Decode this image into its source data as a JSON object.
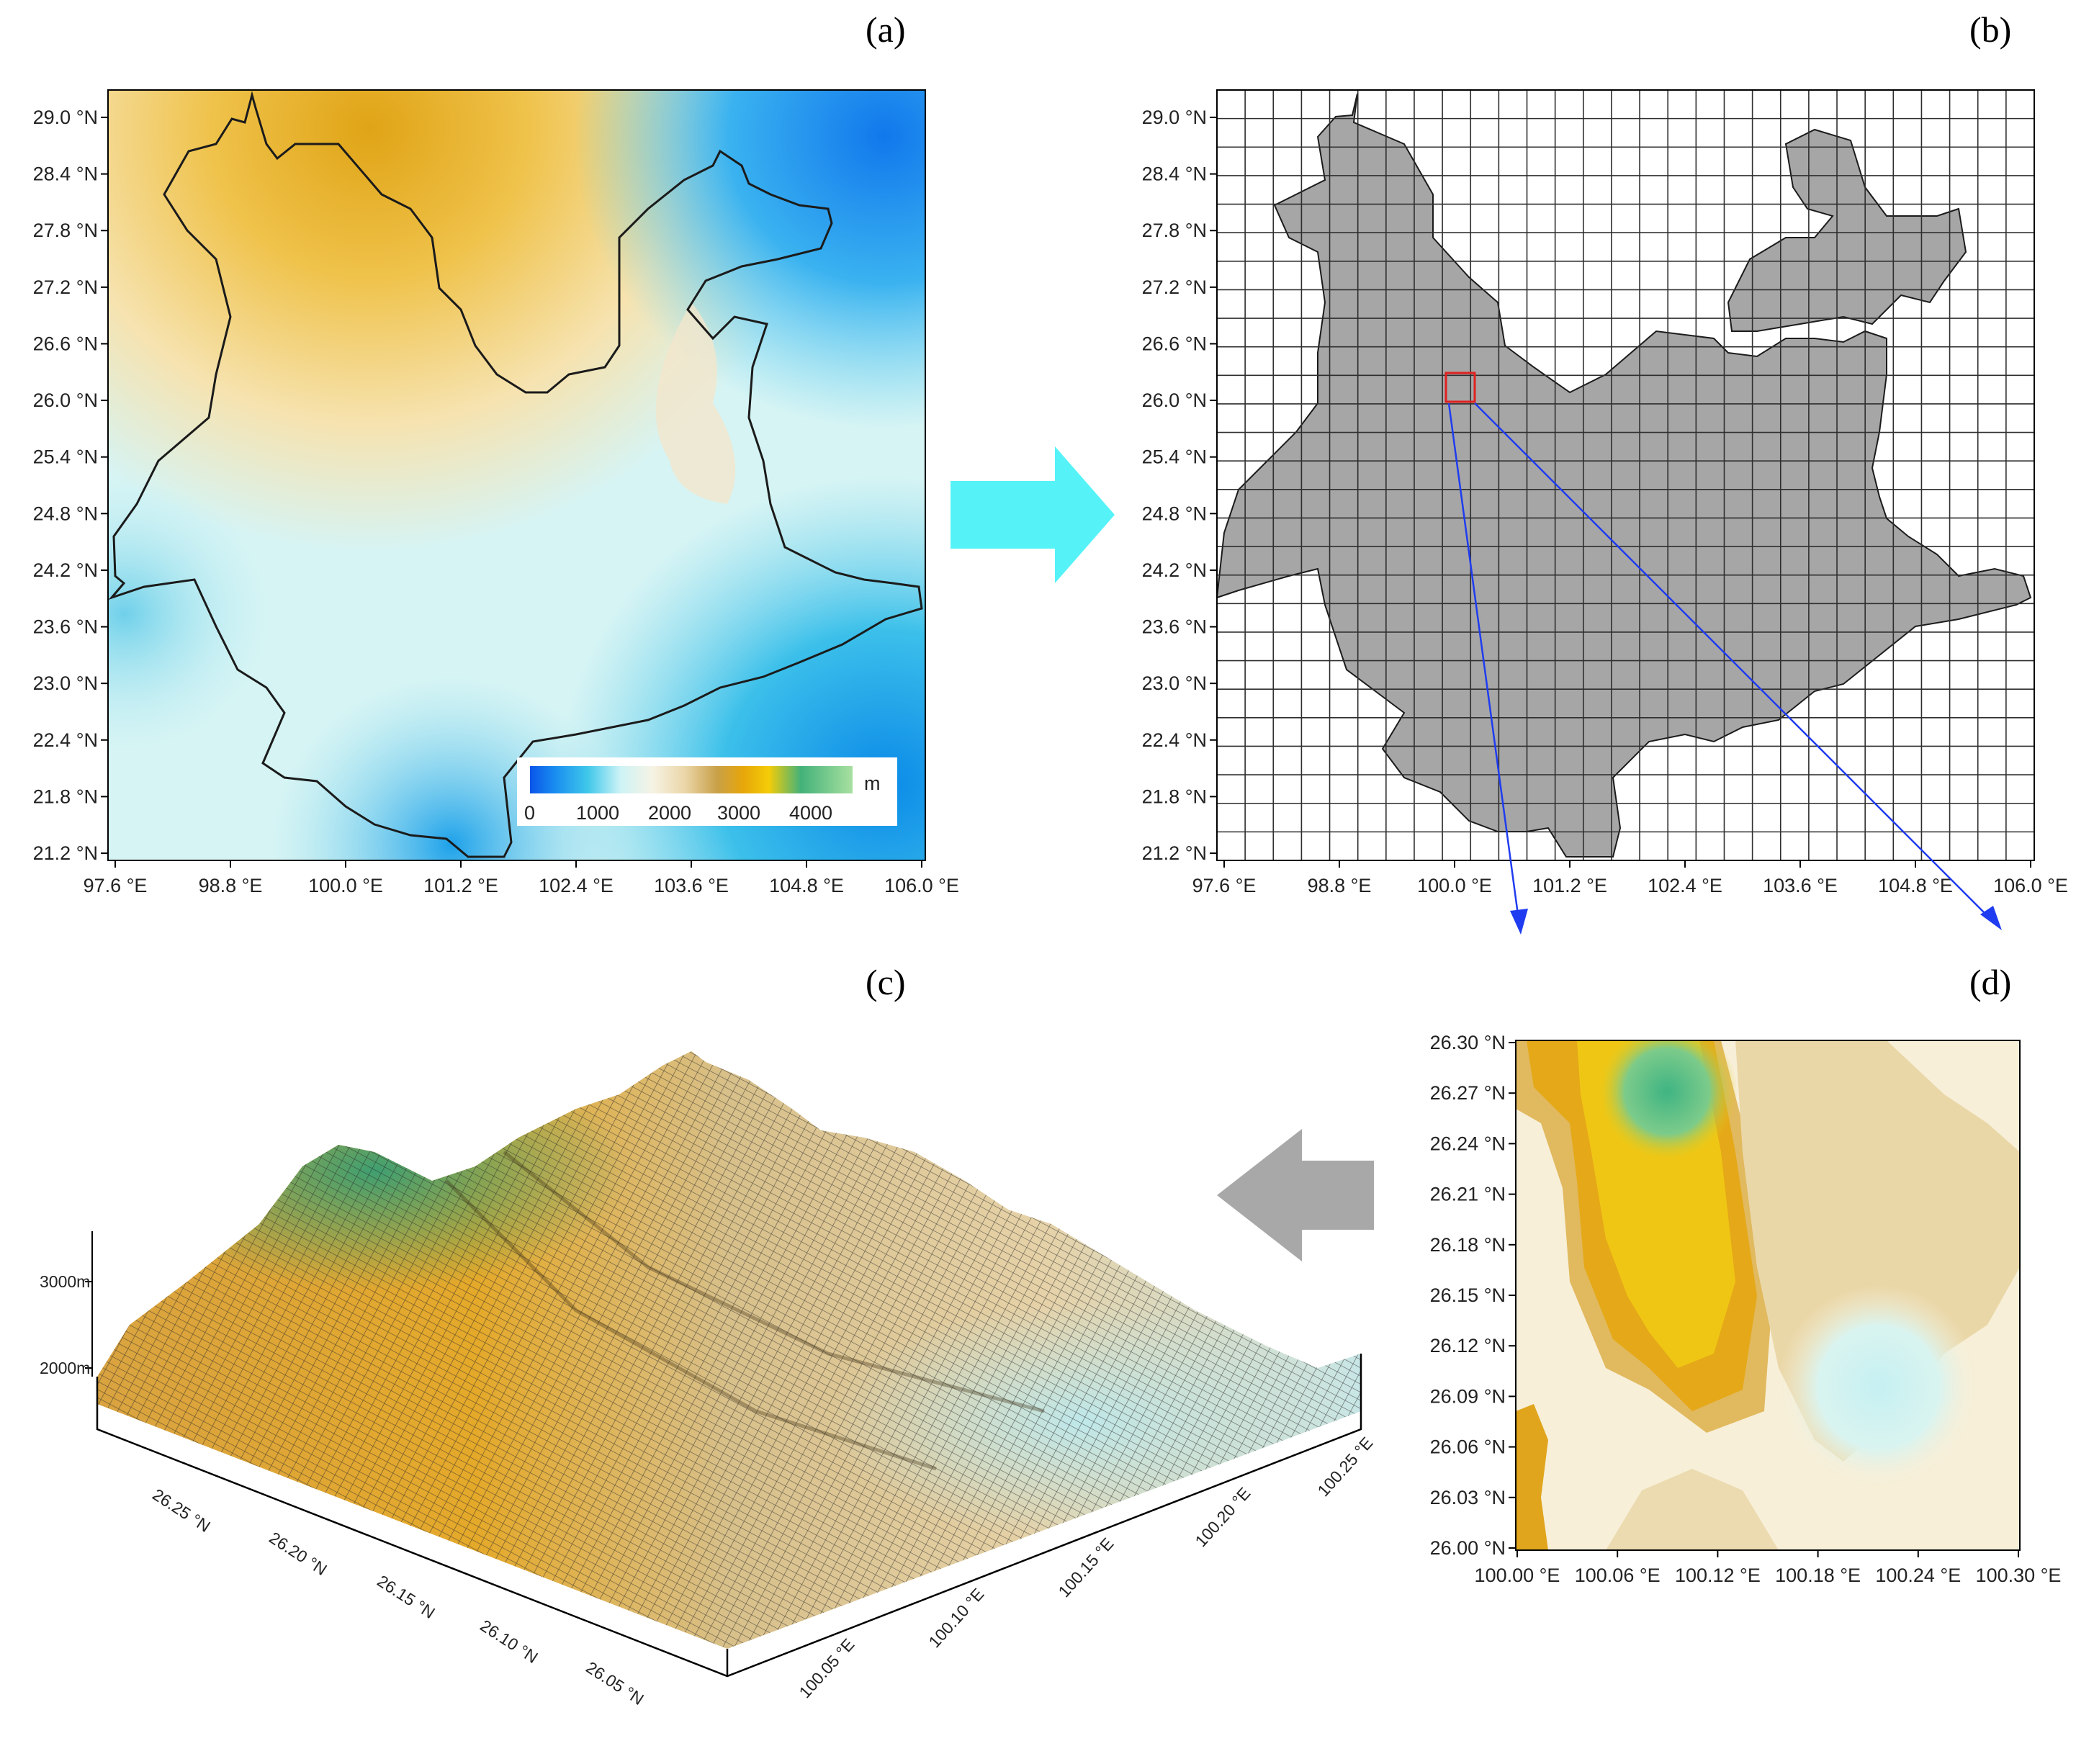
{
  "panel_labels": {
    "a": "(a)",
    "b": "(b)",
    "c": "(c)",
    "d": "(d)"
  },
  "legend": {
    "unit": "m",
    "ticks": [
      "0",
      "1000",
      "2000",
      "3000",
      "4000"
    ]
  },
  "panel_a": {
    "lat_ticks": [
      "29.0 °N",
      "28.4 °N",
      "27.8 °N",
      "27.2 °N",
      "26.6 °N",
      "26.0 °N",
      "25.4 °N",
      "24.8 °N",
      "24.2 °N",
      "23.6 °N",
      "23.0 °N",
      "22.4 °N",
      "21.8 °N",
      "21.2 °N"
    ],
    "lon_ticks": [
      "97.6 °E",
      "98.8 °E",
      "100.0 °E",
      "101.2 °E",
      "102.4 °E",
      "103.6 °E",
      "104.8 °E",
      "106.0 °E"
    ]
  },
  "panel_b": {
    "lat_ticks": [
      "29.0 °N",
      "28.4 °N",
      "27.8 °N",
      "27.2 °N",
      "26.6 °N",
      "26.0 °N",
      "25.4 °N",
      "24.8 °N",
      "24.2 °N",
      "23.6 °N",
      "23.0 °N",
      "22.4 °N",
      "21.8 °N",
      "21.2 °N"
    ],
    "lon_ticks": [
      "97.6 °E",
      "98.8 °E",
      "100.0 °E",
      "101.2 °E",
      "102.4 °E",
      "103.6 °E",
      "104.8 °E",
      "106.0 °E"
    ]
  },
  "panel_c": {
    "z_ticks": [
      "3000m",
      "2000m"
    ],
    "lat_ticks": [
      "26.25 °N",
      "26.20 °N",
      "26.15 °N",
      "26.10 °N",
      "26.05 °N"
    ],
    "lon_ticks": [
      "100.05 °E",
      "100.10 °E",
      "100.15 °E",
      "100.20 °E",
      "100.25 °E"
    ]
  },
  "panel_d": {
    "lat_ticks": [
      "26.30 °N",
      "26.27 °N",
      "26.24 °N",
      "26.21 °N",
      "26.18 °N",
      "26.15 °N",
      "26.12 °N",
      "26.09 °N",
      "26.06 °N",
      "26.03 °N",
      "26.00 °N"
    ],
    "lon_ticks": [
      "100.00 °E",
      "100.06 °E",
      "100.12 °E",
      "100.18 °E",
      "100.24 °E",
      "100.30 °E"
    ]
  },
  "colors": {
    "arrow_cyan": "#55f3f7",
    "arrow_gray": "#a8a8a8",
    "highlight_box": "#e02020",
    "connector": "#1f3cf0",
    "province_fill": "#a6a6a6"
  }
}
